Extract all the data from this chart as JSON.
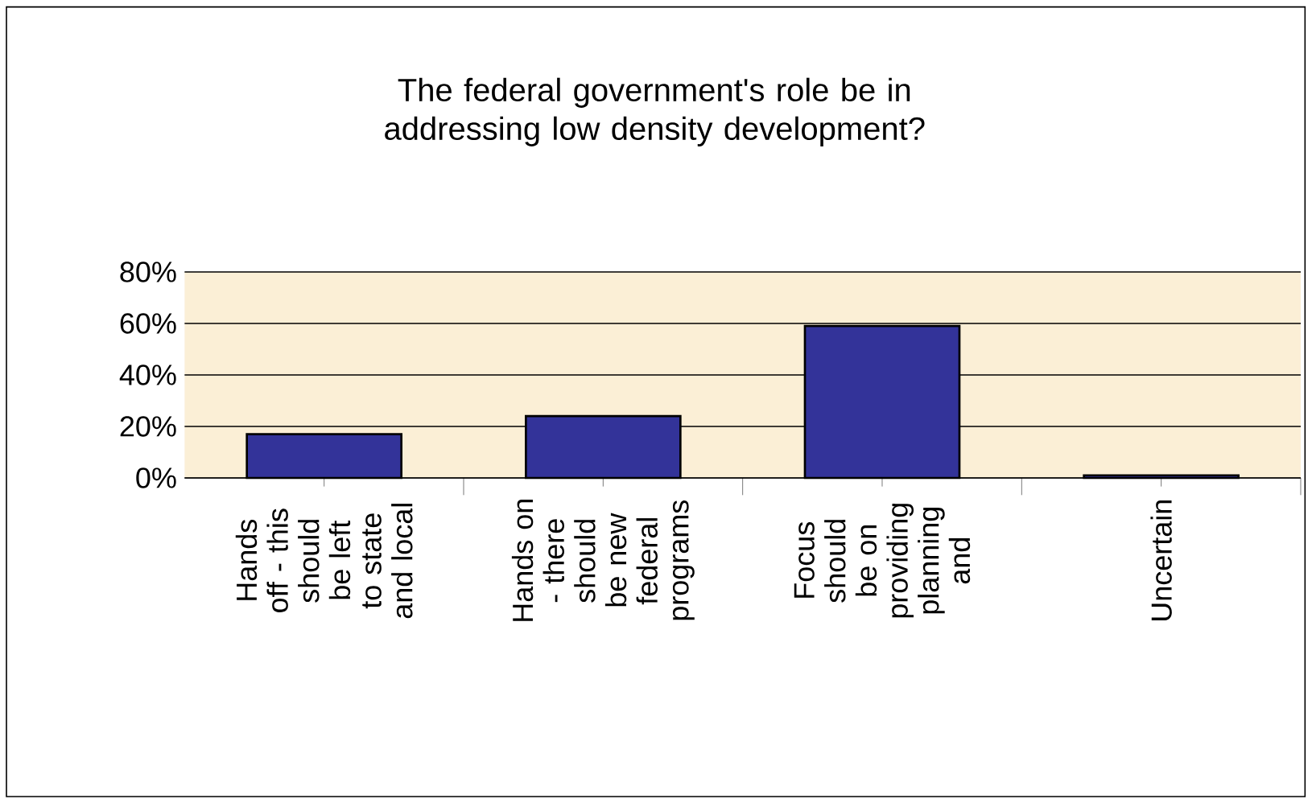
{
  "chart_data": {
    "type": "bar",
    "title": "The federal government's role be in addressing low density development?",
    "categories": [
      "Hands off - this should be left to state and local",
      "Hands on - there should be new federal programs",
      "Focus should be on providing planning and",
      "Uncertain"
    ],
    "values": [
      17,
      24,
      59,
      1
    ],
    "color": "#333399",
    "ylim": [
      0,
      80
    ],
    "yticks": [
      {
        "value": 0,
        "label": "0%"
      },
      {
        "value": 20,
        "label": "20%"
      },
      {
        "value": 40,
        "label": "40%"
      },
      {
        "value": 60,
        "label": "60%"
      },
      {
        "value": 80,
        "label": "80%"
      }
    ],
    "grid": "y"
  }
}
